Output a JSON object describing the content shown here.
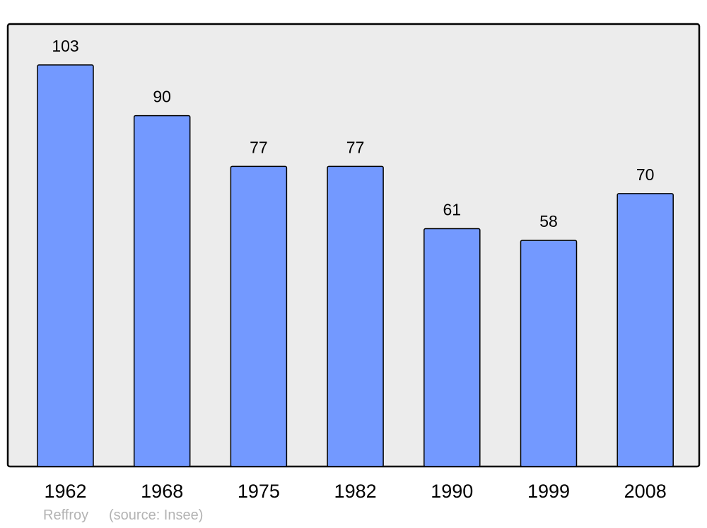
{
  "chart_data": {
    "type": "bar",
    "categories": [
      "1962",
      "1968",
      "1975",
      "1982",
      "1990",
      "1999",
      "2008"
    ],
    "values": [
      103,
      90,
      77,
      77,
      61,
      58,
      70
    ],
    "data_labels": [
      "103",
      "90",
      "77",
      "77",
      "61",
      "58",
      "70"
    ],
    "title": "",
    "xlabel": "",
    "ylabel": "",
    "ylim": [
      0,
      113.5
    ],
    "grid": false,
    "bar_color": "#7399ff",
    "plot_background": "#ececec"
  },
  "footer": {
    "commune": "Reffroy",
    "source": "(source: Insee)"
  }
}
